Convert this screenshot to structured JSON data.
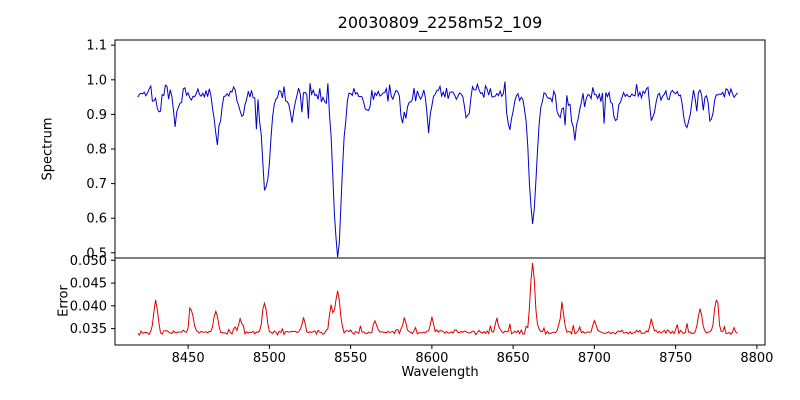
{
  "title": "20030809_2258m52_109",
  "xlabel": "Wavelength",
  "xlim": [
    8405,
    8805
  ],
  "xticks": [
    {
      "v": 8450,
      "label": "8450"
    },
    {
      "v": 8500,
      "label": "8500"
    },
    {
      "v": 8550,
      "label": "8550"
    },
    {
      "v": 8600,
      "label": "8600"
    },
    {
      "v": 8650,
      "label": "8650"
    },
    {
      "v": 8700,
      "label": "8700"
    },
    {
      "v": 8750,
      "label": "8750"
    },
    {
      "v": 8800,
      "label": "8800"
    }
  ],
  "chart_data": [
    {
      "type": "line",
      "name": "spectrum",
      "ylabel": "Spectrum",
      "line_color": "#0000cc",
      "seed": 7,
      "x_start": 8419,
      "x_end": 8788,
      "step": 1,
      "baseline": 0.96,
      "noise_amplitude": 0.033,
      "spike_down": {
        "prob": 0.06,
        "max": 0.09
      },
      "spike_up": {
        "prob": 0.03,
        "max": 0.05
      },
      "ylim": [
        0.485,
        1.115
      ],
      "yticks": [
        {
          "v": 0.5,
          "label": "0.5"
        },
        {
          "v": 0.6,
          "label": "0.6"
        },
        {
          "v": 0.7,
          "label": "0.7"
        },
        {
          "v": 0.8,
          "label": "0.8"
        },
        {
          "v": 0.9,
          "label": "0.9"
        },
        {
          "v": 1.0,
          "label": "1.0"
        },
        {
          "v": 1.1,
          "label": "1.1"
        }
      ],
      "absorption_lines": [
        {
          "center": 8432,
          "depth": 0.05,
          "width": 1.5
        },
        {
          "center": 8443,
          "depth": 0.07,
          "width": 1.8
        },
        {
          "center": 8468,
          "depth": 0.13,
          "width": 2.0
        },
        {
          "center": 8483,
          "depth": 0.06,
          "width": 1.5
        },
        {
          "center": 8498,
          "depth": 0.29,
          "width": 2.3
        },
        {
          "center": 8514,
          "depth": 0.07,
          "width": 1.6
        },
        {
          "center": 8542,
          "depth": 0.46,
          "width": 2.6
        },
        {
          "center": 8560,
          "depth": 0.05,
          "width": 1.5
        },
        {
          "center": 8583,
          "depth": 0.08,
          "width": 1.8
        },
        {
          "center": 8598,
          "depth": 0.06,
          "width": 1.5
        },
        {
          "center": 8621,
          "depth": 0.05,
          "width": 1.5
        },
        {
          "center": 8648,
          "depth": 0.09,
          "width": 1.8
        },
        {
          "center": 8662,
          "depth": 0.37,
          "width": 2.4
        },
        {
          "center": 8679,
          "depth": 0.07,
          "width": 1.6
        },
        {
          "center": 8688,
          "depth": 0.13,
          "width": 2.0
        },
        {
          "center": 8713,
          "depth": 0.08,
          "width": 1.6
        },
        {
          "center": 8736,
          "depth": 0.07,
          "width": 1.6
        },
        {
          "center": 8757,
          "depth": 0.09,
          "width": 1.7
        },
        {
          "center": 8772,
          "depth": 0.07,
          "width": 1.5
        }
      ]
    },
    {
      "type": "line",
      "name": "error",
      "ylabel": "Error",
      "line_color": "#dd0000",
      "seed": 13,
      "x_start": 8419,
      "x_end": 8788,
      "step": 1,
      "baseline": 0.0342,
      "noise_amplitude": 0.0007,
      "spike_up": {
        "prob": 0.08,
        "max": 0.0022
      },
      "ylim": [
        0.0314,
        0.0505
      ],
      "yticks": [
        {
          "v": 0.035,
          "label": "0.035"
        },
        {
          "v": 0.04,
          "label": "0.040"
        },
        {
          "v": 0.045,
          "label": "0.045"
        },
        {
          "v": 0.05,
          "label": "0.050"
        }
      ],
      "peaks": [
        {
          "center": 8430,
          "height": 0.0072,
          "width": 1.2
        },
        {
          "center": 8452,
          "height": 0.005,
          "width": 1.2
        },
        {
          "center": 8467,
          "height": 0.0048,
          "width": 1.2
        },
        {
          "center": 8482,
          "height": 0.0028,
          "width": 1.0
        },
        {
          "center": 8497,
          "height": 0.0062,
          "width": 1.3
        },
        {
          "center": 8521,
          "height": 0.003,
          "width": 1.0
        },
        {
          "center": 8538,
          "height": 0.0055,
          "width": 1.2
        },
        {
          "center": 8542,
          "height": 0.009,
          "width": 1.4
        },
        {
          "center": 8565,
          "height": 0.0025,
          "width": 1.0
        },
        {
          "center": 8583,
          "height": 0.0028,
          "width": 1.0
        },
        {
          "center": 8600,
          "height": 0.003,
          "width": 1.0
        },
        {
          "center": 8640,
          "height": 0.003,
          "width": 1.0
        },
        {
          "center": 8662,
          "height": 0.0148,
          "width": 1.4
        },
        {
          "center": 8680,
          "height": 0.005,
          "width": 1.2
        },
        {
          "center": 8700,
          "height": 0.0028,
          "width": 1.0
        },
        {
          "center": 8735,
          "height": 0.0025,
          "width": 1.0
        },
        {
          "center": 8765,
          "height": 0.0052,
          "width": 1.2
        },
        {
          "center": 8775,
          "height": 0.0068,
          "width": 1.2
        }
      ]
    }
  ]
}
